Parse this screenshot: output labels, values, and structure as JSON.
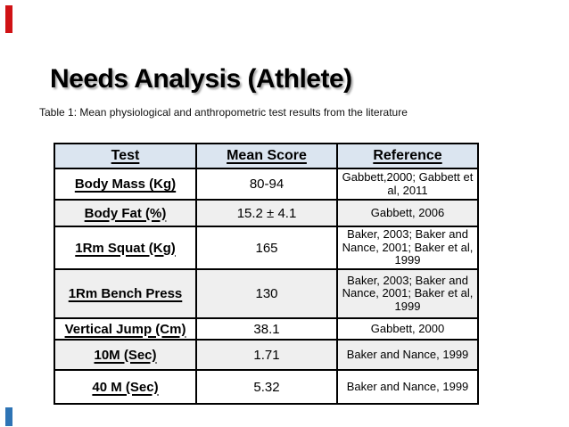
{
  "slide": {
    "title": "Needs Analysis (Athlete)",
    "caption": "Table 1: Mean physiological and anthropometric test results from the literature",
    "accent_bar_top_color": "#d01215",
    "accent_bar_bottom_color": "#2e74b5"
  },
  "table": {
    "colors": {
      "header_bg": "#dbe5f0",
      "band_bg": "#efefef",
      "border": "#000000"
    },
    "headers": [
      "Test",
      "Mean Score",
      "Reference"
    ],
    "rows": [
      {
        "test": "Body Mass (Kg)",
        "mean": "80-94",
        "ref": "Gabbett,2000; Gabbett et al, 2011"
      },
      {
        "test": "Body Fat (%)",
        "mean": "15.2 ± 4.1",
        "ref": "Gabbett, 2006"
      },
      {
        "test": "1Rm Squat (Kg)",
        "mean": "165",
        "ref": "Baker, 2003; Baker and Nance, 2001; Baker et al, 1999"
      },
      {
        "test": "1Rm Bench Press",
        "mean": "130",
        "ref": "Baker, 2003; Baker and Nance, 2001; Baker et al, 1999"
      },
      {
        "test": "Vertical Jump (Cm)",
        "mean": "38.1",
        "ref": "Gabbett, 2000"
      },
      {
        "test": "10M (Sec)",
        "mean": "1.71",
        "ref": "Baker and Nance, 1999"
      },
      {
        "test": "40 M (Sec)",
        "mean": "5.32",
        "ref": "Baker and Nance, 1999"
      }
    ]
  }
}
